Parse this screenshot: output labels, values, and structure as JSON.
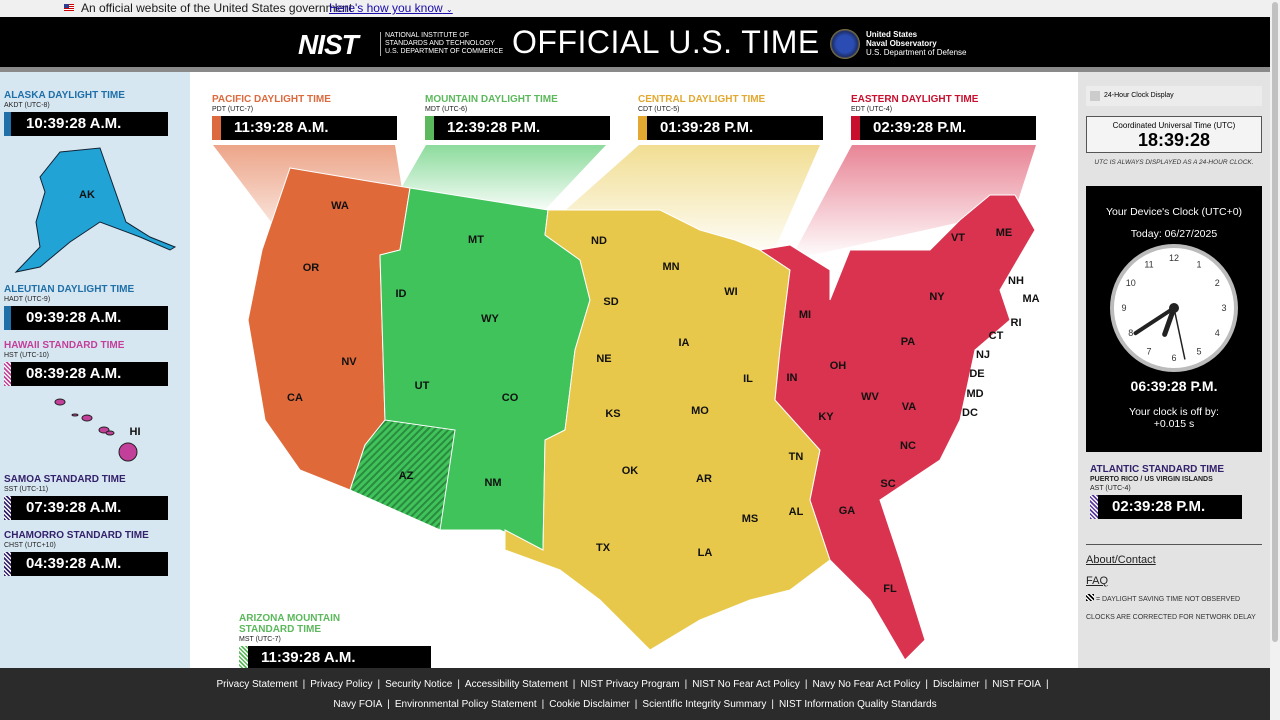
{
  "gov_banner": {
    "text": "An official website of the United States government",
    "link": "Here's how you know"
  },
  "header": {
    "nist_logo": "NIST",
    "nist_sub": [
      "NATIONAL INSTITUTE OF",
      "STANDARDS AND TECHNOLOGY",
      "U.S. DEPARTMENT OF COMMERCE"
    ],
    "title": "OFFICIAL U.S. TIME",
    "usno": [
      "United States",
      "Naval Observatory",
      "U.S. Department of Defense"
    ]
  },
  "left_zones": [
    {
      "name": "ALASKA DAYLIGHT TIME",
      "abbr": "AKDT (UTC-8)",
      "time": "10:39:28 A.M.",
      "color": "#1f6fa8",
      "dst_observed": true
    },
    {
      "name": "ALEUTIAN DAYLIGHT TIME",
      "abbr": "HADT (UTC-9)",
      "time": "09:39:28 A.M.",
      "color": "#1f6fa8",
      "dst_observed": true
    },
    {
      "name": "HAWAII STANDARD TIME",
      "abbr": "HST (UTC-10)",
      "time": "08:39:28 A.M.",
      "color": "#c2409a",
      "dst_observed": false
    },
    {
      "name": "SAMOA STANDARD TIME",
      "abbr": "SST (UTC-11)",
      "time": "07:39:28 A.M.",
      "color": "#33216b",
      "dst_observed": false
    },
    {
      "name": "CHAMORRO STANDARD TIME",
      "abbr": "CHST (UTC+10)",
      "time": "04:39:28 A.M.",
      "color": "#33216b",
      "dst_observed": false
    }
  ],
  "map_zones": [
    {
      "name": "PACIFIC DAYLIGHT TIME",
      "abbr": "PDT (UTC-7)",
      "time": "11:39:28 A.M.",
      "color": "#dc6a3e"
    },
    {
      "name": "MOUNTAIN DAYLIGHT TIME",
      "abbr": "MDT (UTC-6)",
      "time": "12:39:28 P.M.",
      "color": "#5cb85c"
    },
    {
      "name": "CENTRAL DAYLIGHT TIME",
      "abbr": "CDT (UTC-5)",
      "time": "01:39:28 P.M.",
      "color": "#e2a830"
    },
    {
      "name": "EASTERN DAYLIGHT TIME",
      "abbr": "EDT (UTC-4)",
      "time": "02:39:28 P.M.",
      "color": "#c8102e"
    }
  ],
  "arizona": {
    "name1": "ARIZONA MOUNTAIN",
    "name2": "STANDARD TIME",
    "abbr": "MST (UTC-7)",
    "time": "11:39:28 A.M.",
    "color": "#5cb85c"
  },
  "map_colors": {
    "pacific": "#e0693a",
    "mountain": "#3fc35a",
    "central": "#e8c84a",
    "eastern": "#d9334f",
    "alaska": "#21a3d6",
    "hawaii": "#c2409a"
  },
  "states": [
    "WA",
    "OR",
    "CA",
    "NV",
    "ID",
    "MT",
    "WY",
    "UT",
    "CO",
    "AZ",
    "NM",
    "ND",
    "SD",
    "NE",
    "KS",
    "OK",
    "TX",
    "MN",
    "IA",
    "MO",
    "AR",
    "LA",
    "WI",
    "IL",
    "MS",
    "AL",
    "TN",
    "KY",
    "IN",
    "OH",
    "MI",
    "WV",
    "VA",
    "NC",
    "SC",
    "GA",
    "FL",
    "PA",
    "NY",
    "VT",
    "ME",
    "NH",
    "MA",
    "RI",
    "CT",
    "NJ",
    "DE",
    "MD",
    "DC",
    "AK",
    "HI"
  ],
  "right": {
    "toggle_24h": "24-Hour Clock Display",
    "toggle_24h_checked": false,
    "utc_label": "Coordinated Universal Time (UTC)",
    "utc_time": "18:39:28",
    "utc_note": "UTC IS ALWAYS DISPLAYED AS A 24-HOUR CLOCK.",
    "device_label": "Your Device's Clock (UTC+0)",
    "today": "Today: 06/27/2025",
    "device_time": "06:39:28 P.M.",
    "offset_label": "Your clock is off by:",
    "offset_value": "+0.015 s",
    "clock_numbers": [
      "12",
      "1",
      "2",
      "3",
      "4",
      "5",
      "6",
      "7",
      "8",
      "9",
      "10",
      "11"
    ],
    "atlantic": {
      "name": "ATLANTIC STANDARD TIME",
      "sub": "PUERTO RICO / US VIRGIN ISLANDS",
      "abbr": "AST (UTC-4)",
      "time": "02:39:28 P.M.",
      "color": "#5b3a9e"
    },
    "about": "About/Contact",
    "faq": "FAQ",
    "legend": "= DAYLIGHT SAVING TIME NOT OBSERVED",
    "network_note": "CLOCKS ARE CORRECTED FOR NETWORK DELAY"
  },
  "footer": {
    "row1": [
      "Privacy Statement",
      "Privacy Policy",
      "Security Notice",
      "Accessibility Statement",
      "NIST Privacy Program",
      "NIST No Fear Act Policy",
      "Navy No Fear Act Policy",
      "Disclaimer",
      "NIST FOIA"
    ],
    "row2": [
      "Navy FOIA",
      "Environmental Policy Statement",
      "Cookie Disclaimer",
      "Scientific Integrity Summary",
      "NIST Information Quality Standards"
    ]
  }
}
